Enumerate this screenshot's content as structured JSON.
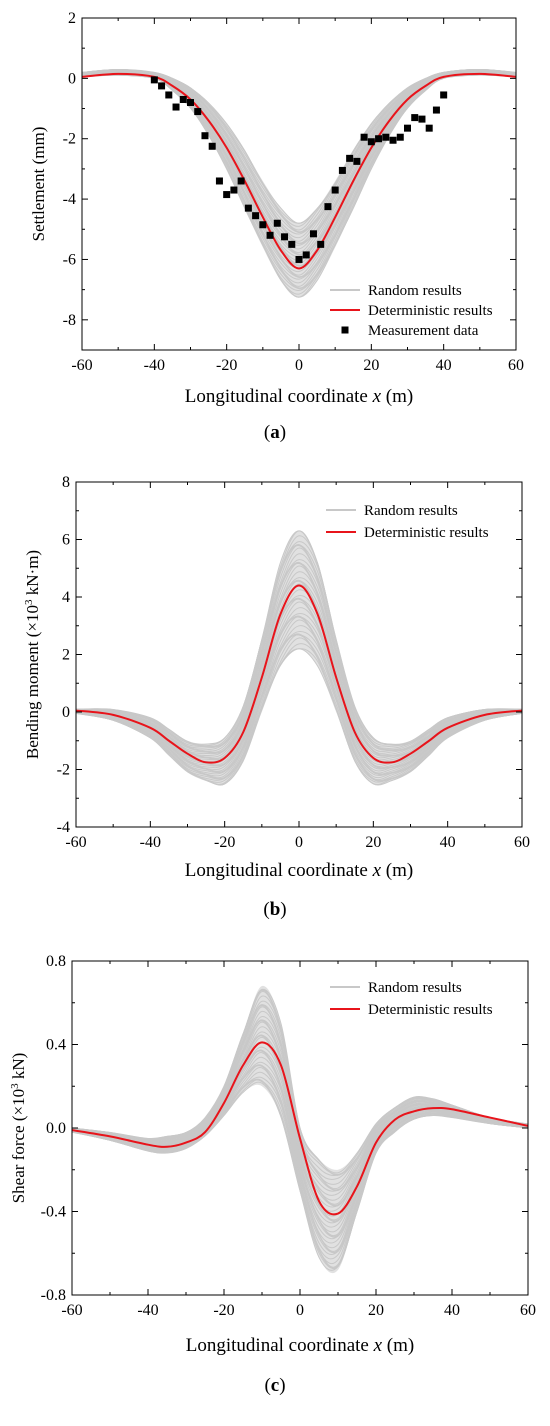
{
  "chart_data": [
    {
      "type": "line",
      "panel_label": "a",
      "xlabel": "Longitudinal coordinate x (m)",
      "xlabel_parts": [
        "Longitudinal coordinate ",
        "x",
        " (m)"
      ],
      "ylabel": "Settlement (mm)",
      "xlim": [
        -60,
        60
      ],
      "ylim": [
        -9,
        2
      ],
      "xticks": [
        -60,
        -40,
        -20,
        0,
        20,
        40,
        60
      ],
      "yticks": [
        -8,
        -6,
        -4,
        -2,
        0,
        2
      ],
      "grid": false,
      "legend_position": "bottom-right",
      "legend": [
        "Random results",
        "Deterministic results",
        "Measurement data"
      ],
      "colors": {
        "random": "#c8c8c8",
        "deterministic": "#e8141b",
        "measurement": "#000000"
      },
      "series": [
        {
          "name": "Random results",
          "kind": "band",
          "x": [
            -60,
            -50,
            -40,
            -35,
            -30,
            -25,
            -20,
            -15,
            -10,
            -5,
            0,
            5,
            10,
            15,
            20,
            25,
            30,
            35,
            40,
            50,
            60
          ],
          "lower": [
            0.05,
            0.1,
            0.0,
            -0.4,
            -1.0,
            -1.9,
            -3.0,
            -4.3,
            -5.6,
            -6.7,
            -7.25,
            -6.7,
            -5.6,
            -4.3,
            -3.0,
            -1.9,
            -1.0,
            -0.4,
            0.0,
            0.1,
            0.05
          ],
          "upper": [
            0.2,
            0.3,
            0.2,
            0.0,
            -0.3,
            -0.8,
            -1.5,
            -2.4,
            -3.4,
            -4.3,
            -4.8,
            -4.3,
            -3.4,
            -2.4,
            -1.5,
            -0.8,
            -0.3,
            0.0,
            0.2,
            0.3,
            0.2
          ]
        },
        {
          "name": "Deterministic results",
          "x": [
            -60,
            -50,
            -40,
            -35,
            -30,
            -25,
            -20,
            -15,
            -10,
            -5,
            0,
            5,
            10,
            15,
            20,
            25,
            30,
            35,
            40,
            50,
            60
          ],
          "y": [
            0.05,
            0.15,
            0.05,
            -0.25,
            -0.7,
            -1.4,
            -2.3,
            -3.4,
            -4.6,
            -5.7,
            -6.3,
            -5.7,
            -4.6,
            -3.4,
            -2.3,
            -1.4,
            -0.7,
            -0.25,
            0.05,
            0.15,
            0.05
          ]
        },
        {
          "name": "Measurement data",
          "kind": "scatter",
          "x": [
            -40,
            -38,
            -36,
            -34,
            -32,
            -30,
            -28,
            -26,
            -24,
            -22,
            -20,
            -18,
            -16,
            -14,
            -12,
            -10,
            -8,
            -6,
            -4,
            -2,
            0,
            2,
            4,
            6,
            8,
            10,
            12,
            14,
            16,
            18,
            20,
            22,
            24,
            26,
            28,
            30,
            32,
            34,
            36,
            38,
            40
          ],
          "y": [
            -0.05,
            -0.25,
            -0.55,
            -0.95,
            -0.7,
            -0.8,
            -1.1,
            -1.9,
            -2.25,
            -3.4,
            -3.85,
            -3.7,
            -3.4,
            -4.3,
            -4.55,
            -4.85,
            -5.2,
            -4.8,
            -5.25,
            -5.5,
            -6.0,
            -5.85,
            -5.15,
            -5.5,
            -4.25,
            -3.7,
            -3.05,
            -2.65,
            -2.75,
            -1.95,
            -2.1,
            -2.0,
            -1.95,
            -2.05,
            -1.95,
            -1.65,
            -1.3,
            -1.35,
            -1.65,
            -1.05,
            -0.55
          ]
        }
      ]
    },
    {
      "type": "line",
      "panel_label": "b",
      "xlabel": "Longitudinal coordinate x (m)",
      "xlabel_parts": [
        "Longitudinal coordinate ",
        "x",
        " (m)"
      ],
      "ylabel": "Bending moment (×10³ kN·m)",
      "ylabel_parts": [
        "Bending moment (×10",
        "3",
        " kN·m)"
      ],
      "xlim": [
        -60,
        60
      ],
      "ylim": [
        -4,
        8
      ],
      "xticks": [
        -60,
        -40,
        -20,
        0,
        20,
        40,
        60
      ],
      "yticks": [
        -4,
        -2,
        0,
        2,
        4,
        6,
        8
      ],
      "grid": false,
      "legend_position": "top-right",
      "legend": [
        "Random results",
        "Deterministic results"
      ],
      "colors": {
        "random": "#c8c8c8",
        "deterministic": "#e8141b"
      },
      "series": [
        {
          "name": "Random results",
          "kind": "band",
          "x": [
            -60,
            -50,
            -40,
            -35,
            -30,
            -25,
            -20,
            -15,
            -10,
            -5,
            0,
            5,
            10,
            15,
            20,
            25,
            30,
            35,
            40,
            50,
            60
          ],
          "lower": [
            -0.05,
            -0.3,
            -0.9,
            -1.5,
            -2.1,
            -2.4,
            -2.5,
            -1.7,
            0.0,
            1.6,
            2.2,
            1.6,
            0.0,
            -1.7,
            -2.5,
            -2.4,
            -2.1,
            -1.5,
            -0.9,
            -0.3,
            -0.05
          ],
          "upper": [
            0.1,
            0.1,
            -0.2,
            -0.6,
            -1.0,
            -1.1,
            -0.9,
            0.2,
            2.6,
            5.2,
            6.3,
            5.2,
            2.6,
            0.2,
            -0.9,
            -1.1,
            -1.0,
            -0.6,
            -0.2,
            0.1,
            0.1
          ]
        },
        {
          "name": "Deterministic results",
          "x": [
            -60,
            -50,
            -40,
            -35,
            -30,
            -25,
            -20,
            -15,
            -10,
            -5,
            0,
            5,
            10,
            15,
            20,
            25,
            30,
            35,
            40,
            50,
            60
          ],
          "y": [
            0.05,
            -0.1,
            -0.55,
            -1.0,
            -1.45,
            -1.75,
            -1.6,
            -0.7,
            1.2,
            3.4,
            4.4,
            3.4,
            1.2,
            -0.7,
            -1.6,
            -1.75,
            -1.45,
            -1.0,
            -0.55,
            -0.1,
            0.05
          ]
        }
      ]
    },
    {
      "type": "line",
      "panel_label": "c",
      "xlabel": "Longitudinal coordinate x (m)",
      "xlabel_parts": [
        "Longitudinal coordinate ",
        "x",
        " (m)"
      ],
      "ylabel": "Shear force (×10³ kN)",
      "ylabel_parts": [
        "Shear force (×10",
        "3",
        " kN)"
      ],
      "xlim": [
        -60,
        60
      ],
      "ylim": [
        -0.8,
        0.8
      ],
      "xticks": [
        -60,
        -40,
        -20,
        0,
        20,
        40,
        60
      ],
      "yticks": [
        -0.8,
        -0.4,
        0.0,
        0.4,
        0.8
      ],
      "ytick_labels": [
        "-0.8",
        "-0.4",
        "0.0",
        "0.4",
        "0.8"
      ],
      "grid": false,
      "legend_position": "top-right",
      "legend": [
        "Random results",
        "Deterministic results"
      ],
      "colors": {
        "random": "#c8c8c8",
        "deterministic": "#e8141b"
      },
      "series": [
        {
          "name": "Random results",
          "kind": "band",
          "x": [
            -60,
            -50,
            -40,
            -35,
            -30,
            -25,
            -20,
            -15,
            -10,
            -5,
            0,
            5,
            10,
            15,
            20,
            25,
            30,
            35,
            40,
            50,
            60
          ],
          "lower": [
            -0.02,
            -0.06,
            -0.11,
            -0.12,
            -0.1,
            -0.04,
            0.06,
            0.17,
            0.2,
            0.05,
            -0.3,
            -0.62,
            -0.68,
            -0.4,
            -0.12,
            -0.02,
            0.04,
            0.06,
            0.05,
            0.02,
            0.0
          ],
          "upper": [
            0.0,
            -0.02,
            -0.05,
            -0.04,
            -0.02,
            0.05,
            0.2,
            0.45,
            0.68,
            0.5,
            0.0,
            -0.15,
            -0.2,
            -0.12,
            0.02,
            0.1,
            0.15,
            0.14,
            0.11,
            0.05,
            0.02
          ]
        },
        {
          "name": "Deterministic results",
          "x": [
            -60,
            -50,
            -40,
            -35,
            -30,
            -25,
            -20,
            -15,
            -10,
            -5,
            0,
            5,
            10,
            15,
            20,
            25,
            30,
            35,
            40,
            50,
            60
          ],
          "y": [
            -0.01,
            -0.04,
            -0.08,
            -0.09,
            -0.07,
            -0.02,
            0.12,
            0.3,
            0.41,
            0.3,
            -0.05,
            -0.35,
            -0.41,
            -0.28,
            -0.07,
            0.04,
            0.08,
            0.095,
            0.09,
            0.05,
            0.01
          ]
        }
      ]
    }
  ]
}
